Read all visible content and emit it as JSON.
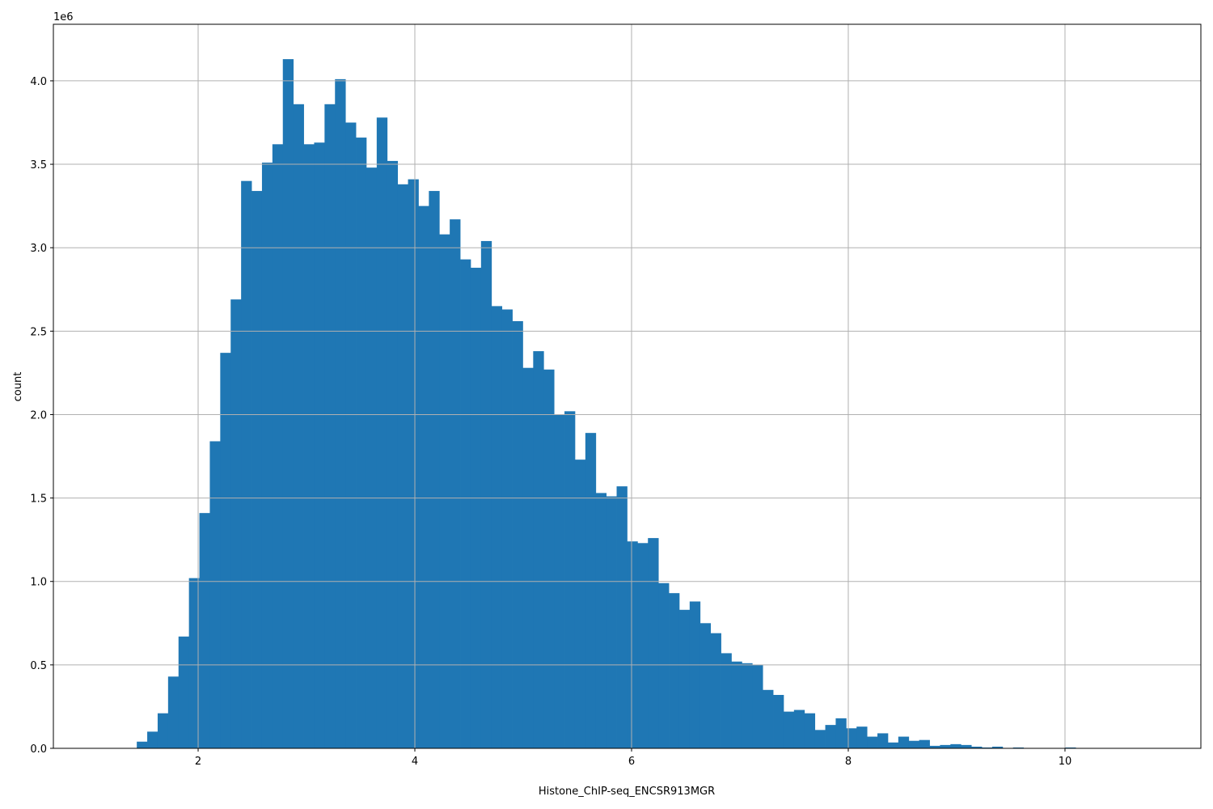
{
  "chart_data": {
    "type": "bar",
    "subtype": "histogram",
    "title": "",
    "xlabel": "Histone_ChIP-seq_ENCSR913MGR",
    "ylabel": "count",
    "y_offset_label": "1e6",
    "y_unit_multiplier": 1000000,
    "bin_start": 1.145,
    "bin_width": 0.09627,
    "bin_count": 100,
    "counts": [
      0,
      0,
      0,
      0.04,
      0.1,
      0.21,
      0.43,
      0.67,
      1.02,
      1.41,
      1.84,
      2.37,
      2.69,
      3.4,
      3.34,
      3.51,
      3.62,
      4.13,
      3.86,
      3.62,
      3.63,
      3.86,
      4.01,
      3.75,
      3.66,
      3.48,
      3.78,
      3.52,
      3.38,
      3.41,
      3.25,
      3.34,
      3.08,
      3.17,
      2.93,
      2.88,
      3.04,
      2.65,
      2.63,
      2.56,
      2.28,
      2.38,
      2.27,
      2.0,
      2.02,
      1.73,
      1.89,
      1.53,
      1.51,
      1.57,
      1.24,
      1.23,
      1.26,
      0.99,
      0.93,
      0.83,
      0.88,
      0.75,
      0.69,
      0.57,
      0.52,
      0.51,
      0.5,
      0.35,
      0.32,
      0.22,
      0.23,
      0.21,
      0.11,
      0.14,
      0.18,
      0.12,
      0.13,
      0.07,
      0.09,
      0.035,
      0.07,
      0.045,
      0.05,
      0.015,
      0.02,
      0.025,
      0.02,
      0.01,
      0.005,
      0.01,
      0.002,
      0.005,
      0.002,
      0.002,
      0.001,
      0.001,
      0.005,
      0.001,
      0.001,
      0,
      0.001,
      0,
      0,
      0.001
    ],
    "xlim": [
      0.664,
      11.254
    ],
    "ylim": [
      0,
      4.339
    ],
    "x_ticks": [
      2,
      4,
      6,
      8,
      10
    ],
    "x_tick_labels": [
      "2",
      "4",
      "6",
      "8",
      "10"
    ],
    "y_ticks": [
      0,
      0.5,
      1,
      1.5,
      2,
      2.5,
      3,
      3.5,
      4
    ],
    "y_tick_labels": [
      "0.0",
      "0.5",
      "1.0",
      "1.5",
      "2.0",
      "2.5",
      "3.0",
      "3.5",
      "4.0"
    ],
    "grid": true,
    "legend": "none",
    "colors": {
      "bar": "#1f77b4",
      "grid": "#b0b0b0",
      "axis": "#000000"
    }
  }
}
